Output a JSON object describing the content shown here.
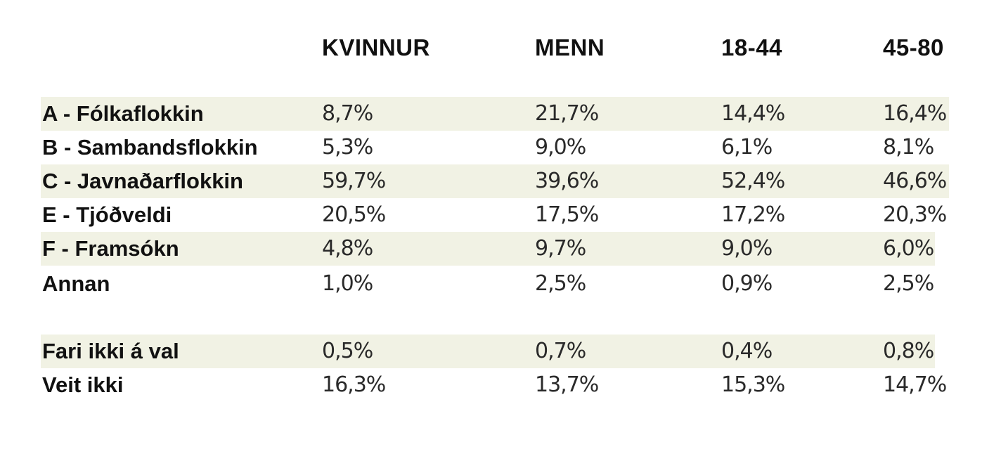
{
  "chart_data": {
    "type": "table",
    "columns": [
      "KVINNUR",
      "MENN",
      "18-44",
      "45-80"
    ],
    "rows": [
      {
        "label": "A - Fólkaflokkin",
        "values": [
          "8,7%",
          "21,7%",
          "14,4%",
          "16,4%"
        ]
      },
      {
        "label": "B - Sambandsflokkin",
        "values": [
          "5,3%",
          "9,0%",
          "6,1%",
          "8,1%"
        ]
      },
      {
        "label": "C - Javnaðarflokkin",
        "values": [
          "59,7%",
          "39,6%",
          "52,4%",
          "46,6%"
        ]
      },
      {
        "label": "E - Tjóðveldi",
        "values": [
          "20,5%",
          "17,5%",
          "17,2%",
          "20,3%"
        ]
      },
      {
        "label": "F - Framsókn",
        "values": [
          "4,8%",
          "9,7%",
          "9,0%",
          "6,0%"
        ]
      },
      {
        "label": "Annan",
        "values": [
          "1,0%",
          "2,5%",
          "0,9%",
          "2,5%"
        ]
      },
      {
        "label": "Fari ikki á val",
        "values": [
          "0,5%",
          "0,7%",
          "0,4%",
          "0,8%"
        ]
      },
      {
        "label": "Veit ikki",
        "values": [
          "16,3%",
          "13,7%",
          "15,3%",
          "14,7%"
        ]
      }
    ],
    "row_shading_color": "#f1f2e4",
    "shaded_rows": [
      0,
      2,
      4,
      6
    ]
  }
}
